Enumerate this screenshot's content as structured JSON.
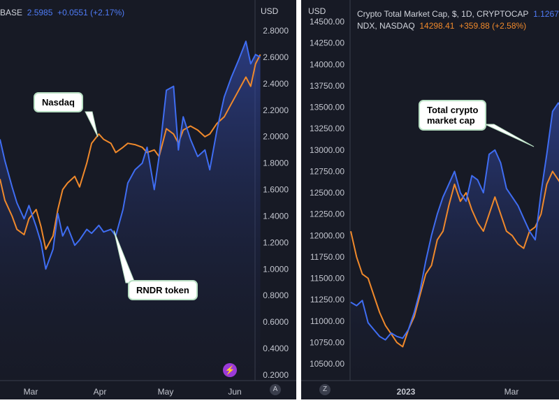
{
  "chart_data": [
    {
      "type": "line",
      "header": {
        "symbol_fragment": "BASE",
        "price": "2.5985",
        "change": "+0.0551 (+2.17%)"
      },
      "y_unit_label": "USD",
      "y_ticks": [
        "2.8000",
        "2.6000",
        "2.4000",
        "2.2000",
        "2.0000",
        "1.8000",
        "1.6000",
        "1.4000",
        "1.2000",
        "1.0000",
        "0.8000",
        "0.6000",
        "0.4000",
        "0.2000"
      ],
      "x_ticks": [
        "Mar",
        "Apr",
        "May",
        "Jun"
      ],
      "ylim": [
        0.2,
        2.8
      ],
      "callouts": [
        "Nasdaq",
        "RNDR token"
      ],
      "scale_button": "A",
      "series": [
        {
          "name": "RNDR token",
          "color": "#3f6df2",
          "x": [
            "2023-02-12",
            "2023-02-14",
            "2023-02-17",
            "2023-02-19",
            "2023-02-22",
            "2023-02-24",
            "2023-02-27",
            "2023-03-01",
            "2023-03-03",
            "2023-03-06",
            "2023-03-08",
            "2023-03-10",
            "2023-03-12",
            "2023-03-15",
            "2023-03-17",
            "2023-03-20",
            "2023-03-22",
            "2023-03-25",
            "2023-03-27",
            "2023-03-30",
            "2023-04-01",
            "2023-04-04",
            "2023-04-06",
            "2023-04-09",
            "2023-04-12",
            "2023-04-14",
            "2023-04-17",
            "2023-04-19",
            "2023-04-22",
            "2023-04-25",
            "2023-04-27",
            "2023-04-29",
            "2023-05-02",
            "2023-05-05",
            "2023-05-08",
            "2023-05-10",
            "2023-05-13",
            "2023-05-16",
            "2023-05-19",
            "2023-05-22",
            "2023-05-25",
            "2023-05-27",
            "2023-05-29",
            "2023-05-31"
          ],
          "y": [
            1.98,
            1.82,
            1.62,
            1.5,
            1.38,
            1.48,
            1.32,
            1.2,
            1.0,
            1.15,
            1.42,
            1.25,
            1.32,
            1.18,
            1.22,
            1.3,
            1.27,
            1.33,
            1.28,
            1.3,
            1.25,
            1.45,
            1.65,
            1.75,
            1.8,
            1.92,
            1.6,
            1.85,
            2.35,
            2.38,
            1.9,
            2.15,
            1.98,
            1.85,
            1.9,
            1.75,
            2.05,
            2.3,
            2.45,
            2.58,
            2.72,
            2.55,
            2.62,
            2.6
          ]
        },
        {
          "name": "Nasdaq",
          "color": "#f0892b",
          "x": [
            "2023-02-12",
            "2023-02-14",
            "2023-02-17",
            "2023-02-19",
            "2023-02-22",
            "2023-02-24",
            "2023-02-27",
            "2023-03-01",
            "2023-03-03",
            "2023-03-06",
            "2023-03-08",
            "2023-03-10",
            "2023-03-12",
            "2023-03-15",
            "2023-03-17",
            "2023-03-20",
            "2023-03-22",
            "2023-03-25",
            "2023-03-27",
            "2023-03-30",
            "2023-04-01",
            "2023-04-04",
            "2023-04-06",
            "2023-04-09",
            "2023-04-12",
            "2023-04-14",
            "2023-04-17",
            "2023-04-19",
            "2023-04-22",
            "2023-04-25",
            "2023-04-27",
            "2023-04-29",
            "2023-05-02",
            "2023-05-05",
            "2023-05-08",
            "2023-05-10",
            "2023-05-13",
            "2023-05-16",
            "2023-05-19",
            "2023-05-22",
            "2023-05-25",
            "2023-05-27",
            "2023-05-29",
            "2023-05-31"
          ],
          "y": [
            1.68,
            1.52,
            1.4,
            1.3,
            1.26,
            1.38,
            1.45,
            1.32,
            1.15,
            1.25,
            1.45,
            1.6,
            1.65,
            1.7,
            1.62,
            1.8,
            1.95,
            2.02,
            1.98,
            1.95,
            1.88,
            1.92,
            1.95,
            1.94,
            1.92,
            1.88,
            1.9,
            1.85,
            2.06,
            2.02,
            1.95,
            2.05,
            2.08,
            2.05,
            2.0,
            2.02,
            2.1,
            2.15,
            2.25,
            2.35,
            2.45,
            2.38,
            2.55,
            2.62
          ]
        }
      ]
    },
    {
      "type": "line",
      "header": {
        "title": "Crypto Total Market Cap, $, 1D, CRYPTOCAP",
        "title_value": "1.1267",
        "ndx_label": "NDX, NASDAQ",
        "ndx_price": "14298.41",
        "ndx_change": "+359.88 (+2.58%)"
      },
      "y_unit_label": "USD",
      "y_ticks": [
        "14500.00",
        "14250.00",
        "14000.00",
        "13750.00",
        "13500.00",
        "13250.00",
        "13000.00",
        "12750.00",
        "12500.00",
        "12250.00",
        "12000.00",
        "11750.00",
        "11500.00",
        "11250.00",
        "11000.00",
        "10750.00",
        "10500.00"
      ],
      "x_ticks": [
        "2023",
        "Mar"
      ],
      "ylim": [
        10500,
        14500
      ],
      "callouts": [
        "Total crypto\nmarket cap"
      ],
      "scale_button": "Z",
      "series": [
        {
          "name": "Total crypto market cap",
          "color": "#3f6df2",
          "x": [
            "2022-12-05",
            "2022-12-08",
            "2022-12-11",
            "2022-12-14",
            "2022-12-17",
            "2022-12-20",
            "2022-12-23",
            "2022-12-26",
            "2022-12-29",
            "2023-01-01",
            "2023-01-04",
            "2023-01-07",
            "2023-01-10",
            "2023-01-13",
            "2023-01-16",
            "2023-01-19",
            "2023-01-22",
            "2023-01-25",
            "2023-01-28",
            "2023-01-31",
            "2023-02-03",
            "2023-02-06",
            "2023-02-09",
            "2023-02-12",
            "2023-02-15",
            "2023-02-18",
            "2023-02-21",
            "2023-02-24",
            "2023-02-27",
            "2023-03-02",
            "2023-03-05",
            "2023-03-08",
            "2023-03-11",
            "2023-03-14",
            "2023-03-17",
            "2023-03-20",
            "2023-03-23",
            "2023-03-26",
            "2023-03-29"
          ],
          "y": [
            11220,
            11180,
            11240,
            10980,
            10900,
            10820,
            10780,
            10860,
            10820,
            10800,
            10900,
            11100,
            11350,
            11700,
            12000,
            12250,
            12450,
            12600,
            12750,
            12500,
            12400,
            12700,
            12650,
            12500,
            12950,
            13000,
            12850,
            12550,
            12450,
            12350,
            12200,
            12050,
            11950,
            12500,
            12950,
            13450,
            13550,
            13450,
            13250
          ]
        },
        {
          "name": "NDX, NASDAQ",
          "color": "#f0892b",
          "x": [
            "2022-12-05",
            "2022-12-08",
            "2022-12-11",
            "2022-12-14",
            "2022-12-17",
            "2022-12-20",
            "2022-12-23",
            "2022-12-26",
            "2022-12-29",
            "2023-01-01",
            "2023-01-04",
            "2023-01-07",
            "2023-01-10",
            "2023-01-13",
            "2023-01-16",
            "2023-01-19",
            "2023-01-22",
            "2023-01-25",
            "2023-01-28",
            "2023-01-31",
            "2023-02-03",
            "2023-02-06",
            "2023-02-09",
            "2023-02-12",
            "2023-02-15",
            "2023-02-18",
            "2023-02-21",
            "2023-02-24",
            "2023-02-27",
            "2023-03-02",
            "2023-03-05",
            "2023-03-08",
            "2023-03-11",
            "2023-03-14",
            "2023-03-17",
            "2023-03-20",
            "2023-03-23",
            "2023-03-26",
            "2023-03-29"
          ],
          "y": [
            12050,
            11750,
            11550,
            11500,
            11300,
            11100,
            10950,
            10850,
            10750,
            10700,
            10900,
            11050,
            11300,
            11550,
            11650,
            11950,
            12050,
            12350,
            12600,
            12400,
            12500,
            12300,
            12150,
            12050,
            12250,
            12450,
            12250,
            12050,
            12000,
            11900,
            11850,
            12050,
            12100,
            12250,
            12600,
            12750,
            12650,
            12550,
            12600
          ]
        }
      ]
    }
  ]
}
